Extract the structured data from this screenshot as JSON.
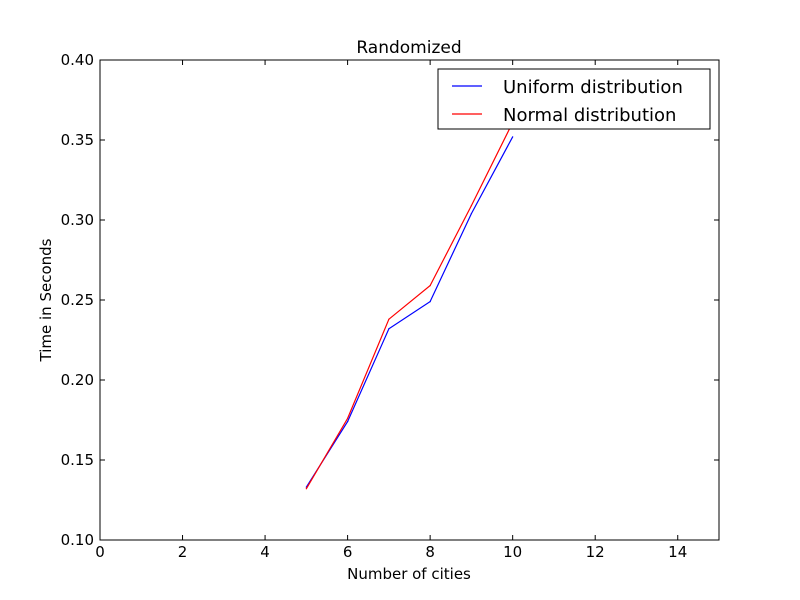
{
  "chart_data": {
    "type": "line",
    "title": "Randomized",
    "xlabel": "Number of cities",
    "ylabel": "Time in Seconds",
    "xlim": [
      0,
      15
    ],
    "ylim": [
      0.1,
      0.4
    ],
    "xticks": [
      0,
      2,
      4,
      6,
      8,
      10,
      12,
      14
    ],
    "yticks": [
      0.1,
      0.15,
      0.2,
      0.25,
      0.3,
      0.35,
      0.4
    ],
    "xtick_labels": [
      "0",
      "2",
      "4",
      "6",
      "8",
      "10",
      "12",
      "14"
    ],
    "ytick_labels": [
      "0.10",
      "0.15",
      "0.20",
      "0.25",
      "0.30",
      "0.35",
      "0.40"
    ],
    "grid": false,
    "legend_position": "top-right",
    "series": [
      {
        "name": "Uniform distribution",
        "color": "#0000ff",
        "x": [
          5,
          6,
          7,
          8,
          9,
          10
        ],
        "y": [
          0.133,
          0.174,
          0.232,
          0.249,
          0.304,
          0.352
        ]
      },
      {
        "name": "Normal distribution",
        "color": "#ff0000",
        "x": [
          5,
          6,
          7,
          8,
          9,
          10
        ],
        "y": [
          0.132,
          0.176,
          0.238,
          0.259,
          0.309,
          0.361
        ]
      }
    ]
  }
}
